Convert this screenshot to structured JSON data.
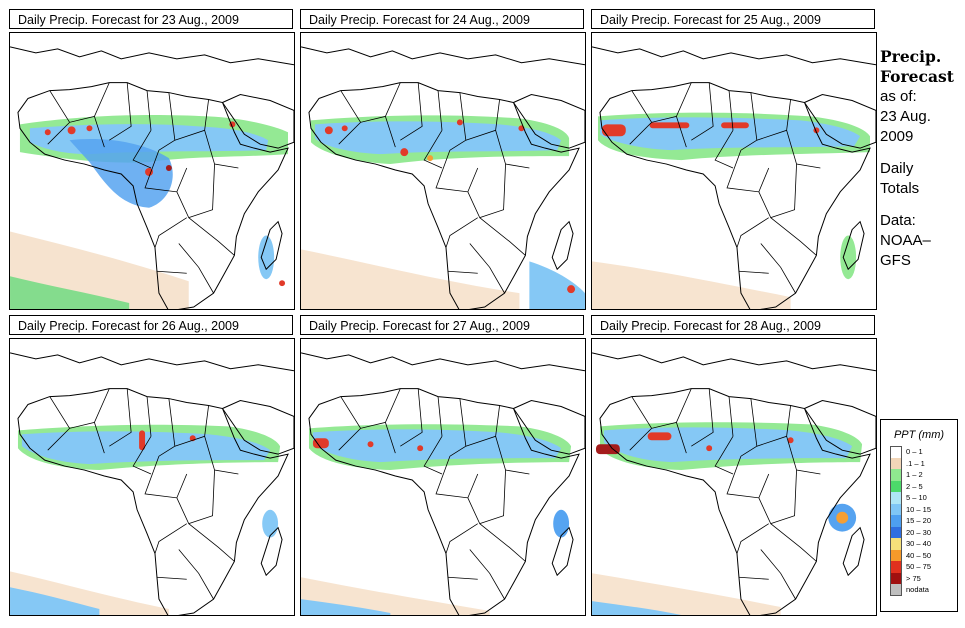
{
  "panels": [
    {
      "title": "Daily Precip. Forecast for  23 Aug., 2009"
    },
    {
      "title": "Daily Precip. Forecast for  24 Aug., 2009"
    },
    {
      "title": "Daily Precip. Forecast for  25 Aug., 2009"
    },
    {
      "title": "Daily Precip. Forecast for  26 Aug., 2009"
    },
    {
      "title": "Daily Precip. Forecast for  27 Aug., 2009"
    },
    {
      "title": "Daily Precip. Forecast for  28 Aug., 2009"
    }
  ],
  "caption": {
    "title_line1": "Precip.",
    "title_line2": "Forecast",
    "asof_label": "as of:",
    "asof_date": "23 Aug.",
    "asof_year": "2009",
    "period_line1": "Daily",
    "period_line2": "Totals",
    "source_label": "Data:",
    "source_line1": "NOAA–",
    "source_line2": "GFS"
  },
  "legend": {
    "title": "PPT (mm)",
    "items": [
      {
        "label": "0 – 1",
        "color": "#ffffff"
      },
      {
        "label": ".1 – 1",
        "color": "#f2d6b8"
      },
      {
        "label": "1 – 2",
        "color": "#8fe88f"
      },
      {
        "label": "2 – 5",
        "color": "#4cd96a"
      },
      {
        "label": "5 – 10",
        "color": "#aee6f5"
      },
      {
        "label": "10 – 15",
        "color": "#7fc6f5"
      },
      {
        "label": "15 – 20",
        "color": "#4d9ff0"
      },
      {
        "label": "20 – 30",
        "color": "#2f6fe0"
      },
      {
        "label": "30 – 40",
        "color": "#f5e07a"
      },
      {
        "label": "40 – 50",
        "color": "#f59a2a"
      },
      {
        "label": "50 – 75",
        "color": "#e0301e"
      },
      {
        "label": "> 75",
        "color": "#a01010"
      },
      {
        "label": "nodata",
        "color": "#bfbfbf"
      }
    ]
  }
}
